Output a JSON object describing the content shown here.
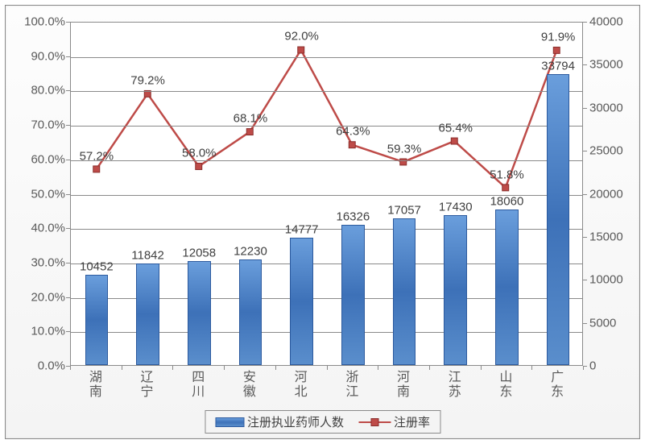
{
  "chart": {
    "type": "combo-bar-line",
    "background_color": "#ffffff",
    "border_color": "#888888",
    "grid_color": "#8a8a8a",
    "axis_label_color": "#5a5a5a",
    "data_label_color": "#404040",
    "axis_fontsize": 15,
    "data_label_fontsize": 15,
    "category_fontsize": 16,
    "categories": [
      "湖南",
      "辽宁",
      "四川",
      "安徽",
      "河北",
      "浙江",
      "河南",
      "江苏",
      "山东",
      "广东"
    ],
    "bars": {
      "series_name": "注册执业药师人数",
      "values": [
        10452,
        11842,
        12058,
        12230,
        14777,
        16326,
        17057,
        17430,
        18060,
        33794
      ],
      "labels": [
        "10452",
        "11842",
        "12058",
        "12230",
        "14777",
        "16326",
        "17057",
        "17430",
        "18060",
        "33794"
      ],
      "fill_gradient": [
        "#6a9edc",
        "#3d71b8",
        "#5a8ecc"
      ],
      "border_color": "#2c5a9e",
      "bar_width_ratio": 0.45
    },
    "line": {
      "series_name": "注册率",
      "values": [
        57.2,
        79.2,
        58.0,
        68.1,
        92.0,
        64.3,
        59.3,
        65.4,
        51.8,
        91.9
      ],
      "labels": [
        "57.2%",
        "79.2%",
        "58.0%",
        "68.1%",
        "92.0%",
        "64.3%",
        "59.3%",
        "65.4%",
        "51.8%",
        "91.9%"
      ],
      "stroke_color": "#be4b48",
      "stroke_width": 2.5,
      "marker_shape": "square",
      "marker_size": 8,
      "marker_fill": "#be4b48",
      "marker_border": "#8a2e2c"
    },
    "y_left": {
      "min": 0,
      "max": 100,
      "step": 10,
      "format": "percent",
      "tick_labels": [
        "0.0%",
        "10.0%",
        "20.0%",
        "30.0%",
        "40.0%",
        "50.0%",
        "60.0%",
        "70.0%",
        "80.0%",
        "90.0%",
        "100.0%"
      ]
    },
    "y_right": {
      "min": 0,
      "max": 40000,
      "step": 5000,
      "format": "number",
      "tick_labels": [
        "0",
        "5000",
        "10000",
        "15000",
        "20000",
        "25000",
        "30000",
        "35000",
        "40000"
      ]
    },
    "legend": {
      "items": [
        {
          "type": "bar",
          "label": "注册执业药师人数"
        },
        {
          "type": "line",
          "label": "注册率"
        }
      ]
    }
  }
}
